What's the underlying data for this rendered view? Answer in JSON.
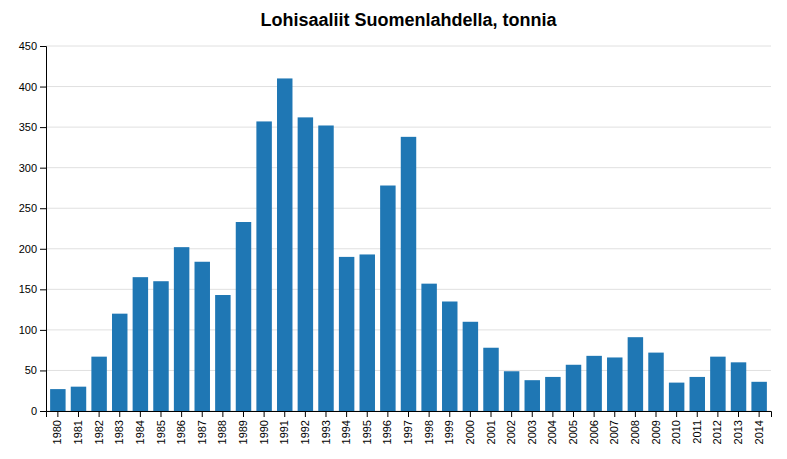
{
  "chart_data": {
    "type": "bar",
    "title": "Lohisaaliit Suomenlahdella, tonnia",
    "categories": [
      "1980",
      "1981",
      "1982",
      "1983",
      "1984",
      "1985",
      "1986",
      "1987",
      "1988",
      "1989",
      "1990",
      "1991",
      "1992",
      "1993",
      "1994",
      "1995",
      "1996",
      "1997",
      "1998",
      "1999",
      "2000",
      "2001",
      "2002",
      "2003",
      "2004",
      "2005",
      "2006",
      "2007",
      "2008",
      "2009",
      "2010",
      "2011",
      "2012",
      "2013",
      "2014"
    ],
    "values": [
      27,
      30,
      67,
      120,
      165,
      160,
      202,
      184,
      143,
      233,
      357,
      410,
      362,
      352,
      190,
      193,
      278,
      338,
      157,
      135,
      110,
      78,
      49,
      38,
      42,
      57,
      68,
      66,
      91,
      72,
      35,
      42,
      67,
      60,
      36
    ],
    "ylim": [
      0,
      450
    ],
    "yticks": [
      0,
      50,
      100,
      150,
      200,
      250,
      300,
      350,
      400,
      450
    ],
    "grid": true
  }
}
